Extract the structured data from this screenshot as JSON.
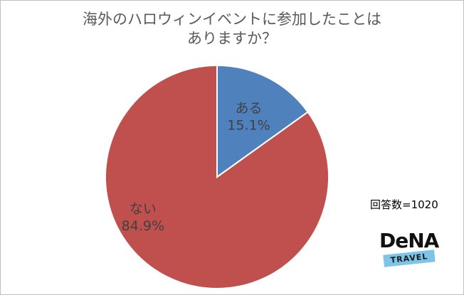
{
  "chart_data": {
    "type": "pie",
    "title_lines": [
      "海外のハロウィンイベントに参加したことは",
      "ありますか？"
    ],
    "slices": [
      {
        "label": "ある",
        "value": 15.1,
        "value_label": "15.1%",
        "color": "#4f81bd"
      },
      {
        "label": "ない",
        "value": 84.9,
        "value_label": "84.9%",
        "color": "#c0504d"
      }
    ],
    "start_angle_deg": 0,
    "direction": "clockwise",
    "legend": "none"
  },
  "annotation": {
    "respondents": "回答数=1020"
  },
  "logo": {
    "brand": "DeNA",
    "band_text": "TRAVEL"
  }
}
